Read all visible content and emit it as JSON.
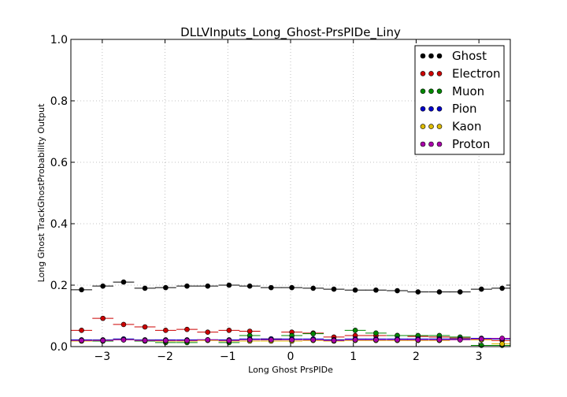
{
  "chart_data": {
    "type": "scatter",
    "title": "DLLVInputs_Long_Ghost-PrsPIDe_Liny",
    "xlabel": "Long Ghost PrsPIDe",
    "ylabel": "Long Ghost TrackGhostProbability Output",
    "xlim": [
      -3.5,
      3.5
    ],
    "ylim": [
      0.0,
      1.0
    ],
    "x_ticks": [
      "−3",
      "−2",
      "−1",
      "0",
      "1",
      "2",
      "3"
    ],
    "x_tick_values": [
      -3,
      -2,
      -1,
      0,
      1,
      2,
      3
    ],
    "y_ticks": [
      "0.0",
      "0.2",
      "0.4",
      "0.6",
      "0.8",
      "1.0"
    ],
    "y_tick_values": [
      0.0,
      0.2,
      0.4,
      0.6,
      0.8,
      1.0
    ],
    "grid": true,
    "legend_position": "top-right",
    "x": [
      -3.33,
      -2.99,
      -2.66,
      -2.32,
      -1.99,
      -1.65,
      -1.32,
      -0.98,
      -0.65,
      -0.31,
      0.02,
      0.36,
      0.69,
      1.03,
      1.36,
      1.7,
      2.03,
      2.37,
      2.7,
      3.04,
      3.37
    ],
    "bin_width": 0.336,
    "series": [
      {
        "name": "Ghost",
        "color": "#000000",
        "values": [
          0.185,
          0.197,
          0.21,
          0.19,
          0.192,
          0.197,
          0.197,
          0.2,
          0.197,
          0.192,
          0.192,
          0.19,
          0.187,
          0.184,
          0.184,
          0.182,
          0.178,
          0.178,
          0.178,
          0.187,
          0.19
        ]
      },
      {
        "name": "Electron",
        "color": "#cc0000",
        "values": [
          0.053,
          0.092,
          0.072,
          0.064,
          0.053,
          0.056,
          0.047,
          0.053,
          0.05,
          0.025,
          0.047,
          0.044,
          0.031,
          0.036,
          0.036,
          0.036,
          0.033,
          0.031,
          0.028,
          0.022,
          0.02
        ]
      },
      {
        "name": "Muon",
        "color": "#008800",
        "values": [
          0.02,
          0.018,
          0.022,
          0.018,
          0.013,
          0.013,
          0.022,
          0.013,
          0.036,
          0.022,
          0.036,
          0.042,
          0.022,
          0.053,
          0.044,
          0.036,
          0.036,
          0.036,
          0.031,
          0.004,
          0.004
        ]
      },
      {
        "name": "Pion",
        "color": "#0000cc",
        "values": [
          0.022,
          0.022,
          0.025,
          0.022,
          0.022,
          0.022,
          0.022,
          0.022,
          0.025,
          0.025,
          0.025,
          0.025,
          0.022,
          0.025,
          0.025,
          0.025,
          0.025,
          0.025,
          0.025,
          0.027,
          0.025
        ]
      },
      {
        "name": "Kaon",
        "color": "#ddbb00",
        "values": [
          0.018,
          0.02,
          0.022,
          0.02,
          0.018,
          0.018,
          0.02,
          0.018,
          0.018,
          0.018,
          0.018,
          0.02,
          0.018,
          0.02,
          0.02,
          0.02,
          0.02,
          0.02,
          0.022,
          0.022,
          0.009
        ]
      },
      {
        "name": "Proton",
        "color": "#aa00aa",
        "values": [
          0.02,
          0.02,
          0.022,
          0.02,
          0.02,
          0.02,
          0.022,
          0.02,
          0.022,
          0.022,
          0.022,
          0.022,
          0.02,
          0.022,
          0.022,
          0.022,
          0.022,
          0.022,
          0.022,
          0.025,
          0.027
        ]
      }
    ]
  }
}
